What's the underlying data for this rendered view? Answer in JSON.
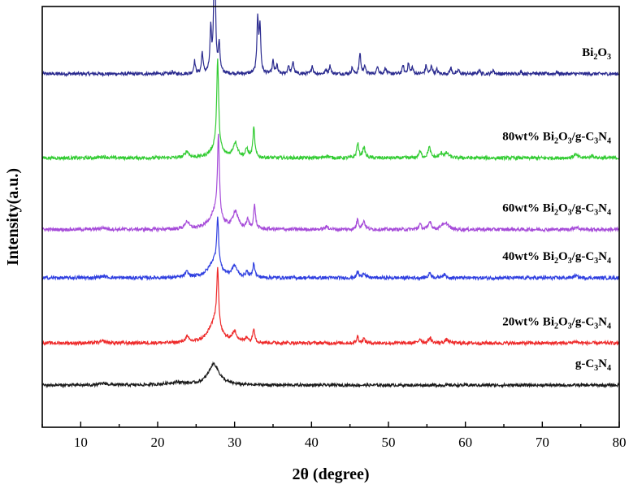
{
  "chart_data": {
    "type": "line",
    "title": "",
    "xlabel": "2θ (degree)",
    "ylabel": "Intensity(a.u.)",
    "xlim": [
      5,
      80
    ],
    "xticks": [
      10,
      20,
      30,
      40,
      50,
      60,
      70,
      80
    ],
    "y_ticks_shown": false,
    "grid": false,
    "legend": "inline labels at right end of each trace",
    "series": [
      {
        "name": "Bi2O3",
        "label_parts": [
          [
            "Bi",
            "n"
          ],
          [
            "2",
            "sub"
          ],
          [
            "O",
            "n"
          ],
          [
            "3",
            "sub"
          ]
        ],
        "color": "#2b2b8f",
        "baseline": 0.84,
        "noise": 0.004,
        "peaks": [
          [
            21.9,
            0.005,
            0.12
          ],
          [
            24.8,
            0.03,
            0.12
          ],
          [
            25.8,
            0.05,
            0.12
          ],
          [
            26.9,
            0.1,
            0.12
          ],
          [
            27.4,
            0.35,
            0.12
          ],
          [
            28.0,
            0.07,
            0.12
          ],
          [
            33.0,
            0.13,
            0.12
          ],
          [
            33.3,
            0.11,
            0.12
          ],
          [
            35.0,
            0.03,
            0.12
          ],
          [
            35.5,
            0.02,
            0.12
          ],
          [
            37.0,
            0.02,
            0.12
          ],
          [
            37.6,
            0.03,
            0.12
          ],
          [
            40.1,
            0.02,
            0.12
          ],
          [
            41.9,
            0.01,
            0.12
          ],
          [
            42.4,
            0.02,
            0.12
          ],
          [
            45.3,
            0.015,
            0.12
          ],
          [
            46.3,
            0.05,
            0.12
          ],
          [
            46.9,
            0.02,
            0.12
          ],
          [
            48.6,
            0.02,
            0.12
          ],
          [
            49.6,
            0.015,
            0.12
          ],
          [
            51.9,
            0.02,
            0.12
          ],
          [
            52.6,
            0.025,
            0.12
          ],
          [
            53.1,
            0.015,
            0.12
          ],
          [
            54.9,
            0.02,
            0.12
          ],
          [
            55.6,
            0.02,
            0.12
          ],
          [
            56.3,
            0.01,
            0.12
          ],
          [
            58.1,
            0.015,
            0.12
          ],
          [
            59.1,
            0.01,
            0.12
          ],
          [
            61.8,
            0.01,
            0.12
          ],
          [
            63.6,
            0.01,
            0.12
          ],
          [
            67.2,
            0.005,
            0.12
          ],
          [
            68.8,
            0.005,
            0.12
          ],
          [
            71.9,
            0.005,
            0.12
          ]
        ]
      },
      {
        "name": "80wt% Bi2O3/g-C3N4",
        "label_parts": [
          [
            "80wt% Bi",
            "n"
          ],
          [
            "2",
            "sub"
          ],
          [
            "O",
            "n"
          ],
          [
            "3",
            "sub"
          ],
          [
            "/g-C",
            "n"
          ],
          [
            "3",
            "sub"
          ],
          [
            "N",
            "n"
          ],
          [
            "4",
            "sub"
          ]
        ],
        "color": "#33cc33",
        "baseline": 0.64,
        "noise": 0.004,
        "peaks": [
          [
            12.9,
            0.003,
            0.5
          ],
          [
            23.8,
            0.015,
            0.3
          ],
          [
            27.6,
            0.025,
            0.8
          ],
          [
            27.8,
            0.21,
            0.15
          ],
          [
            30.1,
            0.035,
            0.35
          ],
          [
            31.6,
            0.02,
            0.2
          ],
          [
            32.5,
            0.07,
            0.15
          ],
          [
            42.0,
            0.005,
            0.3
          ],
          [
            46.0,
            0.035,
            0.15
          ],
          [
            46.8,
            0.025,
            0.2
          ],
          [
            54.1,
            0.015,
            0.2
          ],
          [
            55.3,
            0.025,
            0.2
          ],
          [
            56.9,
            0.01,
            0.3
          ],
          [
            57.6,
            0.01,
            0.3
          ],
          [
            74.3,
            0.008,
            0.3
          ],
          [
            76.5,
            0.005,
            0.3
          ]
        ]
      },
      {
        "name": "60wt% Bi2O3/g-C3N4",
        "label_parts": [
          [
            "60wt% Bi",
            "n"
          ],
          [
            "2",
            "sub"
          ],
          [
            "O",
            "n"
          ],
          [
            "3",
            "sub"
          ],
          [
            "/g-C",
            "n"
          ],
          [
            "3",
            "sub"
          ],
          [
            "N",
            "n"
          ],
          [
            "4",
            "sub"
          ]
        ],
        "color": "#a64bd9",
        "baseline": 0.47,
        "noise": 0.004,
        "peaks": [
          [
            12.9,
            0.004,
            0.5
          ],
          [
            23.8,
            0.018,
            0.3
          ],
          [
            27.5,
            0.04,
            0.9
          ],
          [
            27.9,
            0.19,
            0.15
          ],
          [
            30.1,
            0.04,
            0.4
          ],
          [
            31.7,
            0.02,
            0.2
          ],
          [
            32.6,
            0.055,
            0.15
          ],
          [
            42.0,
            0.006,
            0.3
          ],
          [
            46.0,
            0.025,
            0.15
          ],
          [
            46.8,
            0.02,
            0.2
          ],
          [
            54.1,
            0.012,
            0.2
          ],
          [
            55.4,
            0.02,
            0.2
          ],
          [
            57.0,
            0.01,
            0.3
          ],
          [
            57.6,
            0.012,
            0.3
          ],
          [
            74.4,
            0.006,
            0.3
          ]
        ]
      },
      {
        "name": "40wt% Bi2O3/g-C3N4",
        "label_parts": [
          [
            "40wt% Bi",
            "n"
          ],
          [
            "2",
            "sub"
          ],
          [
            "O",
            "n"
          ],
          [
            "3",
            "sub"
          ],
          [
            "/g-C",
            "n"
          ],
          [
            "3",
            "sub"
          ],
          [
            "N",
            "n"
          ],
          [
            "4",
            "sub"
          ]
        ],
        "color": "#2f3fe0",
        "baseline": 0.355,
        "noise": 0.004,
        "peaks": [
          [
            12.9,
            0.004,
            0.5
          ],
          [
            23.8,
            0.012,
            0.3
          ],
          [
            27.4,
            0.04,
            0.9
          ],
          [
            27.8,
            0.11,
            0.15
          ],
          [
            30.0,
            0.025,
            0.4
          ],
          [
            31.6,
            0.012,
            0.2
          ],
          [
            32.5,
            0.035,
            0.15
          ],
          [
            46.0,
            0.015,
            0.15
          ],
          [
            46.8,
            0.012,
            0.2
          ],
          [
            55.4,
            0.012,
            0.2
          ],
          [
            57.2,
            0.008,
            0.3
          ],
          [
            74.3,
            0.005,
            0.3
          ]
        ]
      },
      {
        "name": "20wt% Bi2O3/g-C3N4",
        "label_parts": [
          [
            "20wt% Bi",
            "n"
          ],
          [
            "2",
            "sub"
          ],
          [
            "O",
            "n"
          ],
          [
            "3",
            "sub"
          ],
          [
            "/g-C",
            "n"
          ],
          [
            "3",
            "sub"
          ],
          [
            "N",
            "n"
          ],
          [
            "4",
            "sub"
          ]
        ],
        "color": "#ee2a2a",
        "baseline": 0.2,
        "noise": 0.004,
        "peaks": [
          [
            12.9,
            0.004,
            0.5
          ],
          [
            23.8,
            0.012,
            0.3
          ],
          [
            27.4,
            0.05,
            0.9
          ],
          [
            27.8,
            0.14,
            0.15
          ],
          [
            30.0,
            0.022,
            0.4
          ],
          [
            31.6,
            0.012,
            0.2
          ],
          [
            32.5,
            0.035,
            0.15
          ],
          [
            46.0,
            0.015,
            0.15
          ],
          [
            46.8,
            0.01,
            0.2
          ],
          [
            54.1,
            0.01,
            0.2
          ],
          [
            55.4,
            0.013,
            0.2
          ],
          [
            57.6,
            0.008,
            0.3
          ],
          [
            74.3,
            0.004,
            0.3
          ]
        ]
      },
      {
        "name": "g-C3N4",
        "label_parts": [
          [
            "g-C",
            "n"
          ],
          [
            "3",
            "sub"
          ],
          [
            "N",
            "n"
          ],
          [
            "4",
            "sub"
          ]
        ],
        "color": "#1a1a1a",
        "baseline": 0.1,
        "noise": 0.0035,
        "peaks": [
          [
            13.0,
            0.004,
            0.6
          ],
          [
            22.5,
            0.006,
            1.5
          ],
          [
            27.3,
            0.05,
            0.85
          ]
        ]
      }
    ]
  }
}
